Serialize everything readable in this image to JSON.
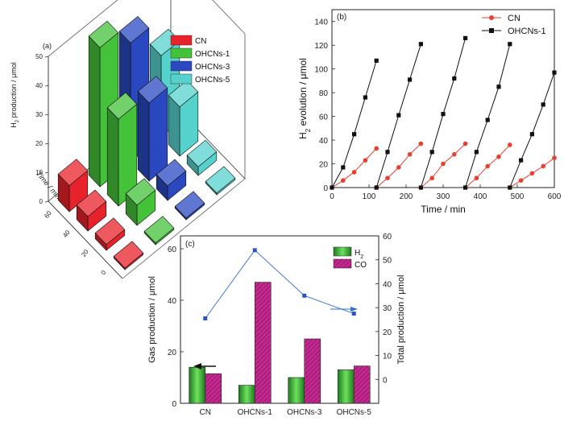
{
  "colors": {
    "cn": "#e8222a",
    "ohcn1": "#44c23a",
    "ohcn3": "#2a49c0",
    "ohcn5": "#56d2cd",
    "red_line": "#e8402e",
    "black": "#111111",
    "blue_line": "#4a7bd8",
    "h2_bar": "#3dbb3a",
    "co_bar": "#c2288e",
    "arrow_blue": "#2c6fd6"
  },
  "chart_data": [
    {
      "panel": "(a)",
      "type": "bar3d",
      "ylabel": "H2 production / μmol",
      "xlabel": "Time / min",
      "categories": [
        "0",
        "20",
        "40",
        "60"
      ],
      "zticks": [
        "0",
        "10",
        "20",
        "30",
        "40",
        "50"
      ],
      "zlim": [
        0,
        50
      ],
      "series": [
        {
          "name": "CN",
          "values": [
            0,
            2,
            5,
            9
          ]
        },
        {
          "name": "OHCNs-1",
          "values": [
            0,
            7,
            30,
            48
          ]
        },
        {
          "name": "OHCNs-3",
          "values": [
            0,
            5,
            27,
            41
          ]
        },
        {
          "name": "OHCNs-5",
          "values": [
            0,
            3,
            17,
            28
          ]
        }
      ],
      "legend": "top-right"
    },
    {
      "panel": "(b)",
      "type": "line",
      "xlabel": "Time / min",
      "ylabel": "H2 evolution / μmol",
      "xlim": [
        0,
        600
      ],
      "ylim": [
        0,
        150
      ],
      "xticks": [
        0,
        100,
        200,
        300,
        400,
        500,
        600
      ],
      "yticks": [
        0,
        20,
        40,
        60,
        80,
        100,
        120,
        140
      ],
      "legend": "top-right",
      "series": [
        {
          "name": "CN",
          "segments": [
            [
              [
                0,
                0
              ],
              [
                30,
                6
              ],
              [
                60,
                13
              ],
              [
                90,
                23
              ],
              [
                120,
                33
              ]
            ],
            [
              [
                120,
                0
              ],
              [
                150,
                8
              ],
              [
                180,
                17
              ],
              [
                210,
                28
              ],
              [
                240,
                37
              ]
            ],
            [
              [
                240,
                0
              ],
              [
                270,
                8
              ],
              [
                300,
                20
              ],
              [
                330,
                28
              ],
              [
                360,
                37
              ]
            ],
            [
              [
                360,
                0
              ],
              [
                390,
                8
              ],
              [
                420,
                18
              ],
              [
                450,
                26
              ],
              [
                480,
                36
              ]
            ],
            [
              [
                480,
                0
              ],
              [
                510,
                6
              ],
              [
                540,
                12
              ],
              [
                570,
                18
              ],
              [
                600,
                25
              ]
            ]
          ]
        },
        {
          "name": "OHCNs-1",
          "segments": [
            [
              [
                0,
                0
              ],
              [
                30,
                17
              ],
              [
                60,
                45
              ],
              [
                90,
                76
              ],
              [
                120,
                107
              ]
            ],
            [
              [
                120,
                0
              ],
              [
                150,
                30
              ],
              [
                180,
                61
              ],
              [
                210,
                91
              ],
              [
                240,
                121
              ]
            ],
            [
              [
                240,
                0
              ],
              [
                270,
                30
              ],
              [
                300,
                62
              ],
              [
                330,
                92
              ],
              [
                360,
                126
              ]
            ],
            [
              [
                360,
                0
              ],
              [
                390,
                30
              ],
              [
                420,
                57
              ],
              [
                450,
                85
              ],
              [
                480,
                121
              ]
            ],
            [
              [
                480,
                0
              ],
              [
                510,
                23
              ],
              [
                540,
                45
              ],
              [
                570,
                70
              ],
              [
                600,
                97
              ]
            ]
          ]
        }
      ]
    },
    {
      "panel": "(c)",
      "type": "bar",
      "categories": [
        "CN",
        "OHCNs-1",
        "OHCNs-3",
        "OHCNs-5"
      ],
      "ylabel": "Gas production / μmol",
      "y2label": "Total production / μmol",
      "ylim": [
        0,
        65
      ],
      "y2lim": [
        -10,
        60
      ],
      "yticks": [
        0,
        20,
        40,
        60
      ],
      "y2ticks": [
        0,
        10,
        20,
        30,
        40,
        50,
        60
      ],
      "series": [
        {
          "name": "H2",
          "values": [
            14,
            7,
            10,
            13
          ]
        },
        {
          "name": "CO",
          "values": [
            11.5,
            47,
            25,
            14.5
          ]
        }
      ],
      "total": [
        25.5,
        54,
        35,
        27.5
      ],
      "legend": "top-right"
    }
  ]
}
